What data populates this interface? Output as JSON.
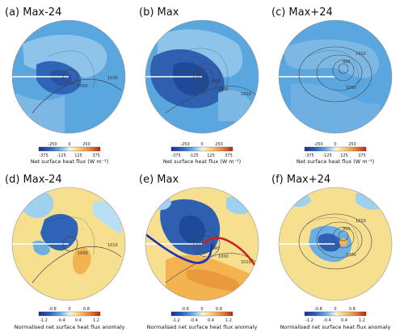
{
  "panels": [
    {
      "label": "(a) Max-24",
      "contours": [
        "1000",
        "1010"
      ]
    },
    {
      "label": "(b) Max",
      "contours": [
        "990",
        "1000",
        "1010"
      ]
    },
    {
      "label": "(c) Max+24",
      "contours": [
        "990",
        "1000",
        "1010"
      ]
    },
    {
      "label": "(d) Max-24",
      "contours": [
        "1000",
        "1010"
      ]
    },
    {
      "label": "(e) Max",
      "contours": [
        "990",
        "1000",
        "1010"
      ]
    },
    {
      "label": "(f) Max+24",
      "contours": [
        "990",
        "1000",
        "1010"
      ]
    }
  ],
  "colorbars": {
    "flux": {
      "title": "Net surface heat flux (W m⁻²)",
      "ticks_top": [
        "-250",
        "0",
        "250"
      ],
      "ticks_bottom": [
        "-375",
        "-125",
        "125",
        "375"
      ]
    },
    "anomaly": {
      "title": "Normalised net surface heat flux anomaly",
      "ticks_top": [
        "-0.8",
        "0",
        "0.8"
      ],
      "ticks_bottom": [
        "-1.2",
        "-0.4",
        "0.4",
        "1.2"
      ]
    }
  },
  "colors": {
    "ocean_flux": "#4e9ad6",
    "deep_blue": "#2e5fb0",
    "darkest_blue": "#1f4a99",
    "anomaly_fill": "#f6df8e",
    "front_cold": "#1c2fb8",
    "front_warm": "#d11f1f",
    "contour": "#444444"
  }
}
